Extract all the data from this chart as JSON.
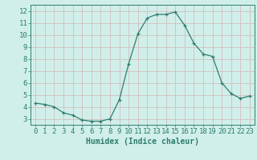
{
  "x": [
    0,
    1,
    2,
    3,
    4,
    5,
    6,
    7,
    8,
    9,
    10,
    11,
    12,
    13,
    14,
    15,
    16,
    17,
    18,
    19,
    20,
    21,
    22,
    23
  ],
  "y": [
    4.3,
    4.2,
    4.0,
    3.5,
    3.3,
    2.9,
    2.8,
    2.8,
    3.0,
    4.6,
    7.6,
    10.1,
    11.4,
    11.7,
    11.7,
    11.9,
    10.8,
    9.3,
    8.4,
    8.2,
    6.0,
    5.1,
    4.7,
    4.9
  ],
  "title": "",
  "xlabel": "Humidex (Indice chaleur)",
  "ylabel": "",
  "xlim": [
    -0.5,
    23.5
  ],
  "ylim": [
    2.5,
    12.5
  ],
  "yticks": [
    3,
    4,
    5,
    6,
    7,
    8,
    9,
    10,
    11,
    12
  ],
  "xticks": [
    0,
    1,
    2,
    3,
    4,
    5,
    6,
    7,
    8,
    9,
    10,
    11,
    12,
    13,
    14,
    15,
    16,
    17,
    18,
    19,
    20,
    21,
    22,
    23
  ],
  "line_color": "#2e7d6e",
  "marker_color": "#2e7d6e",
  "bg_color": "#d0efea",
  "grid_color": "#c8c8c8",
  "grid_color_red": "#e8b0b0",
  "xlabel_fontsize": 7,
  "tick_fontsize": 6.5
}
